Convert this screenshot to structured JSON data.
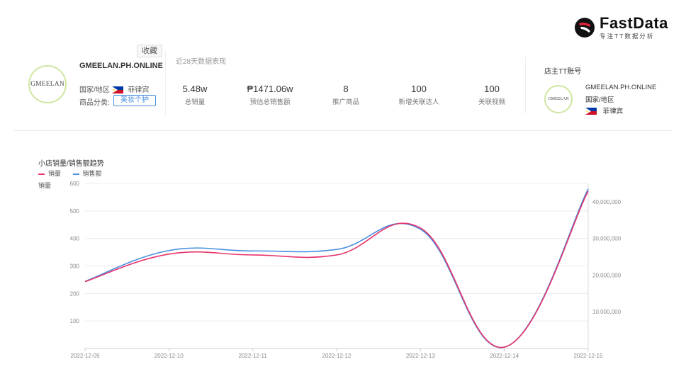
{
  "brand": {
    "name": "FastData",
    "tagline": "专注TT数据分析",
    "accent": "#e0263c"
  },
  "shop": {
    "avatar_text": "GMEELAN",
    "favorite_label": "收藏",
    "name": "GMEELAN.PH.ONLINE",
    "region_label": "国家/地区",
    "country": "菲律宾",
    "category_label": "商品分类:",
    "category": "美妆个护"
  },
  "stats": {
    "period": "近28天数据表现",
    "items": [
      {
        "value": "5.48w",
        "label": "总销量"
      },
      {
        "value": "₱1471.06w",
        "label": "预估总销售额"
      },
      {
        "value": "8",
        "label": "推广商品"
      },
      {
        "value": "100",
        "label": "新增关联达人"
      },
      {
        "value": "100",
        "label": "关联视频"
      }
    ]
  },
  "owner": {
    "title": "店主TT账号",
    "avatar_text": "GMEELAN",
    "name": "GMEELAN.PH.ONLINE",
    "region_label": "国家/地区",
    "country": "菲律宾"
  },
  "chart_data": {
    "type": "line",
    "title": "小店销量/销售额趋势",
    "ylabel": "销量",
    "categories": [
      "2022-12-09",
      "2022-12-10",
      "2022-12-11",
      "2022-12-12",
      "2022-12-13",
      "2022-12-14",
      "2022-12-15"
    ],
    "series": [
      {
        "name": "销量",
        "axis": "left",
        "color": "#e8336b",
        "values": [
          243,
          343,
          340,
          340,
          438,
          5,
          572
        ]
      },
      {
        "name": "销售额",
        "axis": "right",
        "color": "#4a8fe0",
        "values": [
          18300000,
          26700000,
          26600000,
          27000000,
          32500000,
          350000,
          43500000
        ]
      }
    ],
    "ylim_left": [
      0,
      600
    ],
    "yticks_left": [
      "600",
      "500",
      "400",
      "300",
      "200",
      "100"
    ],
    "ylim_right": [
      0,
      45000000
    ],
    "yticks_right": [
      "40,000,000",
      "30,000,000",
      "20,000,000",
      "10,000,000"
    ]
  }
}
